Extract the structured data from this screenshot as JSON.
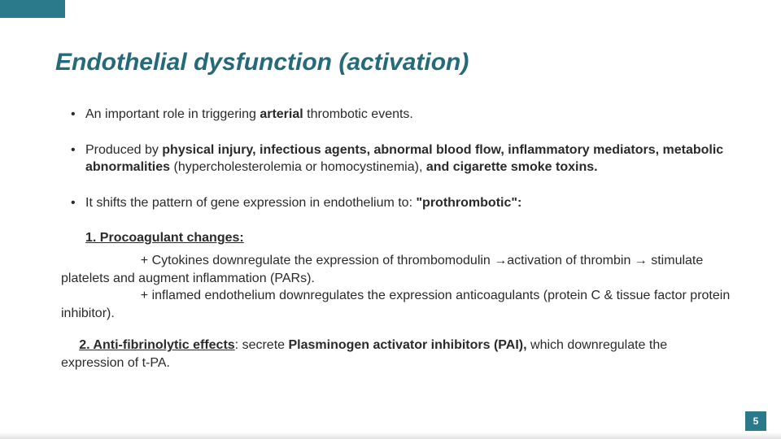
{
  "accent_color": "#2b7a8c",
  "title_color": "#246a78",
  "text_color": "#2a2a2a",
  "title": "Endothelial dysfunction (activation)",
  "bullets": {
    "b1_pre": "An important role in triggering ",
    "b1_bold": "arterial",
    "b1_post": " thrombotic events.",
    "b2_pre": "Produced by ",
    "b2_bold1": "physical injury, infectious agents, abnormal blood flow, inflammatory mediators, metabolic abnormalities ",
    "b2_mid": "(hypercholesterolemia or homocystinemia), ",
    "b2_bold2": "and cigarette smoke toxins.",
    "b3_pre": "It shifts the pattern of gene expression in endothelium to: ",
    "b3_bold": "\"prothrombotic\":"
  },
  "section1": {
    "heading": "1. Procoagulant changes:",
    "line1": "+ Cytokines downregulate the expression of thrombomodulin →activation of thrombin → stimulate platelets and augment inflammation (PARs).",
    "line2": "+ inflamed endothelium downregulates the expression anticoagulants (protein C & tissue factor protein inhibitor)."
  },
  "section2": {
    "heading": "2. Anti-fibrinolytic effects",
    "post": ": secrete ",
    "bold": "Plasminogen activator inhibitors (PAI), ",
    "tail": "which downregulate the expression of t-PA."
  },
  "page_number": "5"
}
